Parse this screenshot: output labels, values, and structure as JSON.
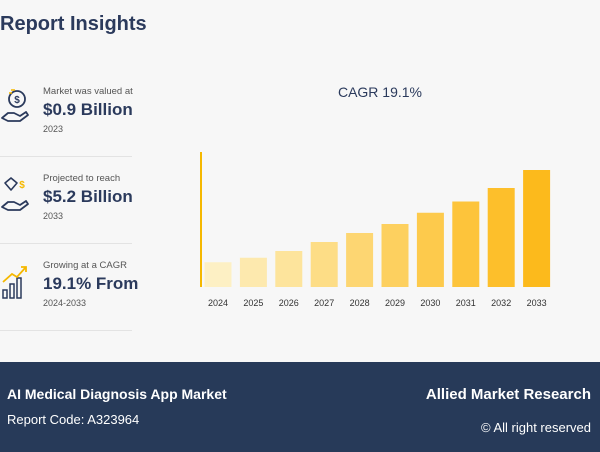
{
  "header": {
    "title": "Report Insights"
  },
  "stats": [
    {
      "label": "Market was valued at",
      "value": "$0.9 Billion",
      "year": "2023",
      "icon": "money-hand-icon"
    },
    {
      "label": "Projected to reach",
      "value": "$5.2 Billion",
      "year": "2033",
      "icon": "diamond-money-icon"
    },
    {
      "label": "Growing at a CAGR",
      "value": "19.1% From",
      "year": "2024-2033",
      "icon": "growth-chart-icon"
    }
  ],
  "chart_data": {
    "type": "bar",
    "title": "CAGR 19.1%",
    "categories": [
      "2024",
      "2025",
      "2026",
      "2027",
      "2028",
      "2029",
      "2030",
      "2031",
      "2032",
      "2033"
    ],
    "values": [
      1.1,
      1.3,
      1.6,
      2.0,
      2.4,
      2.8,
      3.3,
      3.8,
      4.4,
      5.2
    ],
    "ylim": [
      0,
      6
    ],
    "colors": [
      "#fdf0c4",
      "#fde9ae",
      "#fde49c",
      "#fddd86",
      "#fdd672",
      "#fdd05f",
      "#fdca4c",
      "#fdc43b",
      "#fdbf2b",
      "#fcba1c"
    ],
    "axis_color": "#f5b800"
  },
  "footer": {
    "market": "AI Medical Diagnosis App Market",
    "report_code": "Report Code: A323964",
    "brand": "Allied Market Research",
    "rights": "© All right reserved"
  }
}
